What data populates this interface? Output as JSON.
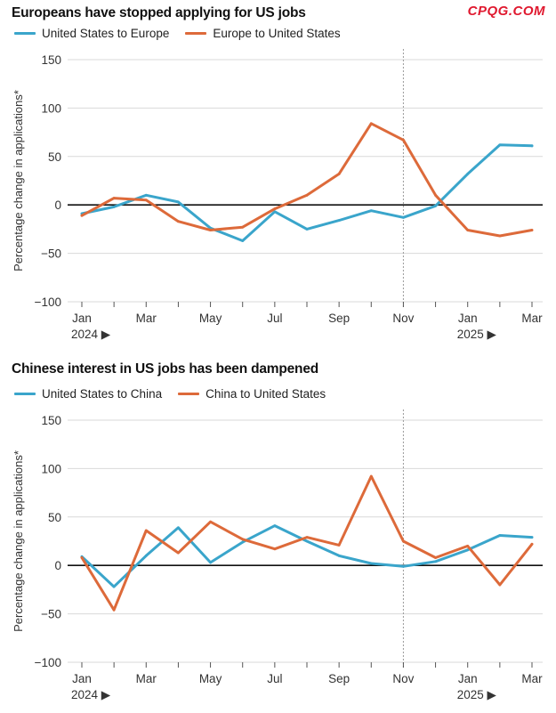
{
  "watermark": "CPQG.COM",
  "colors": {
    "us_series": "#3aa5cb",
    "other_series": "#dd6a3a",
    "grid": "#d9d9d9",
    "zero": "#111111",
    "divider": "#9a9a9a"
  },
  "chart_data": [
    {
      "type": "line",
      "title": "Europeans have stopped applying for US jobs",
      "ylabel": "Percentage change in applications*",
      "xlabel": "",
      "ylim": [
        -100,
        150
      ],
      "yticks": [
        "150",
        "100",
        "50",
        "0",
        "−50",
        "−100"
      ],
      "x": [
        "Jan 2024",
        "Feb 2024",
        "Mar 2024",
        "Apr 2024",
        "May 2024",
        "Jun 2024",
        "Jul 2024",
        "Aug 2024",
        "Sep 2024",
        "Oct 2024",
        "Nov 2024",
        "Dec 2024",
        "Jan 2025",
        "Feb 2025",
        "Mar 2025"
      ],
      "xtick_labels": [
        "Jan",
        "",
        "Mar",
        "",
        "May",
        "",
        "Jul",
        "",
        "Sep",
        "",
        "Nov",
        "",
        "Jan",
        "",
        "Mar"
      ],
      "year_labels": {
        "0": "2024 ▶",
        "12": "2025 ▶"
      },
      "divider_at_index": 10.0,
      "series": [
        {
          "name": "United States to Europe",
          "color_key": "us_series",
          "values": [
            -9,
            -2,
            10,
            3,
            -24,
            -37,
            -7,
            -25,
            -16,
            -6,
            -13,
            -1,
            32,
            62,
            61
          ]
        },
        {
          "name": "Europe to United States",
          "color_key": "other_series",
          "values": [
            -11,
            7,
            5,
            -17,
            -26,
            -23,
            -4,
            10,
            32,
            84,
            67,
            10,
            -26,
            -32,
            -26
          ]
        }
      ]
    },
    {
      "type": "line",
      "title": "Chinese interest in US jobs has been dampened",
      "ylabel": "Percentage change in applications*",
      "xlabel": "",
      "ylim": [
        -100,
        150
      ],
      "yticks": [
        "150",
        "100",
        "50",
        "0",
        "−50",
        "−100"
      ],
      "x": [
        "Jan 2024",
        "Feb 2024",
        "Mar 2024",
        "Apr 2024",
        "May 2024",
        "Jun 2024",
        "Jul 2024",
        "Aug 2024",
        "Sep 2024",
        "Oct 2024",
        "Nov 2024",
        "Dec 2024",
        "Jan 2025",
        "Feb 2025",
        "Mar 2025"
      ],
      "xtick_labels": [
        "Jan",
        "",
        "Mar",
        "",
        "May",
        "",
        "Jul",
        "",
        "Sep",
        "",
        "Nov",
        "",
        "Jan",
        "",
        "Mar"
      ],
      "year_labels": {
        "0": "2024 ▶",
        "12": "2025 ▶"
      },
      "divider_at_index": 10.0,
      "series": [
        {
          "name": "United States to China",
          "color_key": "us_series",
          "values": [
            9,
            -22,
            10,
            39,
            3,
            24,
            41,
            25,
            10,
            2,
            -1,
            4,
            16,
            31,
            29
          ]
        },
        {
          "name": "China to United States",
          "color_key": "other_series",
          "values": [
            8,
            -46,
            36,
            13,
            45,
            27,
            17,
            29,
            21,
            92,
            25,
            8,
            20,
            -20,
            22
          ]
        }
      ]
    }
  ]
}
